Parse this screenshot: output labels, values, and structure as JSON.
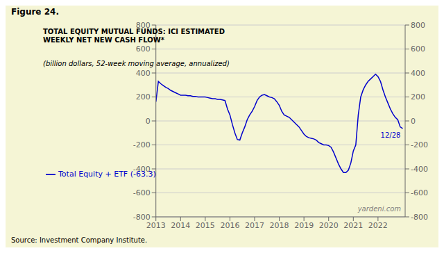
{
  "chart_data": {
    "type": "line",
    "title": "Figure 24.",
    "subtitle": "TOTAL EQUITY MUTUAL FUNDS: ICI ESTIMATED\nWEEKLY NET NEW CASH FLOW*",
    "annotations": [
      {
        "text": "(billion dollars, 52-week moving average, annualized)"
      },
      {
        "text": "12/28",
        "x": 2023.0,
        "y": -63,
        "color": "#0000cc"
      },
      {
        "text": "yardeni.com"
      },
      {
        "text": "Source: Investment Company Institute."
      }
    ],
    "x": [
      2013.0,
      2013.1,
      2013.2,
      2013.3,
      2013.4,
      2013.5,
      2013.6,
      2013.7,
      2013.8,
      2013.9,
      2014.0,
      2014.1,
      2014.2,
      2014.3,
      2014.4,
      2014.5,
      2014.6,
      2014.7,
      2014.8,
      2014.9,
      2015.0,
      2015.1,
      2015.2,
      2015.3,
      2015.4,
      2015.5,
      2015.6,
      2015.7,
      2015.8,
      2015.9,
      2016.0,
      2016.1,
      2016.2,
      2016.3,
      2016.4,
      2016.5,
      2016.6,
      2016.7,
      2016.8,
      2016.9,
      2017.0,
      2017.1,
      2017.2,
      2017.3,
      2017.4,
      2017.5,
      2017.6,
      2017.7,
      2017.8,
      2017.9,
      2018.0,
      2018.1,
      2018.2,
      2018.3,
      2018.4,
      2018.5,
      2018.6,
      2018.7,
      2018.8,
      2018.9,
      2019.0,
      2019.1,
      2019.2,
      2019.3,
      2019.4,
      2019.5,
      2019.6,
      2019.7,
      2019.8,
      2019.9,
      2020.0,
      2020.1,
      2020.2,
      2020.3,
      2020.4,
      2020.5,
      2020.6,
      2020.7,
      2020.8,
      2020.9,
      2021.0,
      2021.1,
      2021.2,
      2021.3,
      2021.4,
      2021.5,
      2021.6,
      2021.7,
      2021.8,
      2021.9,
      2022.0,
      2022.1,
      2022.2,
      2022.3,
      2022.4,
      2022.5,
      2022.6,
      2022.7,
      2022.8,
      2022.9,
      2023.0
    ],
    "series": [
      {
        "name": "Total Equity + ETF (-63.3)",
        "color": "#0000cc",
        "values": [
          160,
          330,
          310,
          295,
          280,
          270,
          255,
          245,
          235,
          225,
          215,
          215,
          215,
          210,
          210,
          205,
          205,
          200,
          200,
          200,
          200,
          195,
          190,
          185,
          185,
          180,
          180,
          175,
          170,
          100,
          50,
          -30,
          -100,
          -155,
          -160,
          -100,
          -50,
          10,
          50,
          80,
          120,
          170,
          200,
          215,
          220,
          210,
          200,
          195,
          185,
          160,
          130,
          80,
          50,
          40,
          30,
          10,
          -10,
          -30,
          -50,
          -80,
          -110,
          -130,
          -140,
          -145,
          -150,
          -160,
          -180,
          -190,
          -200,
          -200,
          -205,
          -220,
          -260,
          -310,
          -360,
          -400,
          -430,
          -430,
          -410,
          -350,
          -250,
          -200,
          50,
          200,
          260,
          300,
          330,
          350,
          370,
          390,
          370,
          330,
          260,
          200,
          150,
          100,
          60,
          30,
          10,
          -50,
          -63
        ]
      }
    ],
    "xlim": [
      2013,
      2023.1
    ],
    "xticks": [
      2013,
      2014,
      2015,
      2016,
      2017,
      2018,
      2019,
      2020,
      2021,
      2022
    ],
    "ylim": [
      -800,
      800
    ],
    "yticks": [
      -800,
      -600,
      -400,
      -200,
      0,
      200,
      400,
      600,
      800
    ],
    "y2lim": [
      -800,
      800
    ],
    "y2ticks": [
      -800,
      -600,
      -400,
      -200,
      0,
      200,
      400,
      600,
      800
    ],
    "grid": true,
    "legend": "lower left",
    "background_color": "#f5f5d5"
  }
}
